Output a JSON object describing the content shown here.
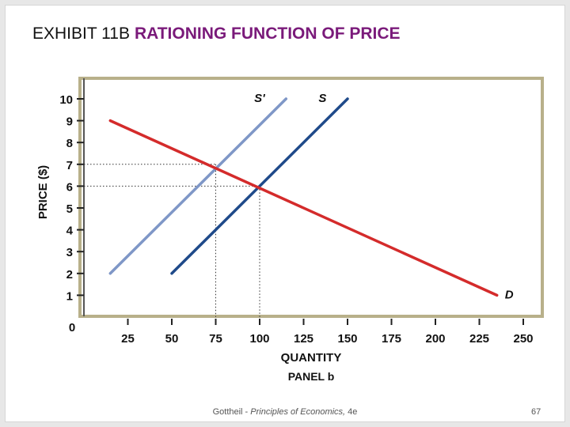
{
  "slide": {
    "title_prefix": "EXHIBIT 11B",
    "title_main": "RATIONING FUNCTION OF PRICE",
    "footer_author": "Gottheil - ",
    "footer_book": "Principles of Economics,",
    "footer_edition": " 4e",
    "page_number": "67"
  },
  "colors": {
    "demand": "#d42b2b",
    "supply": "#1f4a8a",
    "supply_shifted": "#7f97c7",
    "plot_border": "#b8b08a",
    "title_accent": "#7a1a7a"
  },
  "chart_data": {
    "type": "line",
    "title": "",
    "xlabel": "QUANTITY",
    "ylabel": "PRICE ($)",
    "panel_label": "PANEL b",
    "xlim": [
      0,
      250
    ],
    "ylim": [
      0,
      10
    ],
    "x_ticks": [
      25,
      50,
      75,
      100,
      125,
      150,
      175,
      200,
      225,
      250
    ],
    "y_ticks": [
      1,
      2,
      3,
      4,
      5,
      6,
      7,
      8,
      9,
      10
    ],
    "origin_label": "0",
    "grid": false,
    "series": [
      {
        "name": "S'",
        "color_key": "supply_shifted",
        "points": [
          [
            15,
            2
          ],
          [
            115,
            10
          ]
        ]
      },
      {
        "name": "S",
        "color_key": "supply",
        "points": [
          [
            50,
            2
          ],
          [
            150,
            10
          ]
        ]
      },
      {
        "name": "D",
        "color_key": "demand",
        "points": [
          [
            15,
            9
          ],
          [
            235,
            1
          ]
        ]
      }
    ],
    "reference_lines": [
      {
        "x": 75,
        "y": 7
      },
      {
        "x": 100,
        "y": 6
      }
    ]
  }
}
